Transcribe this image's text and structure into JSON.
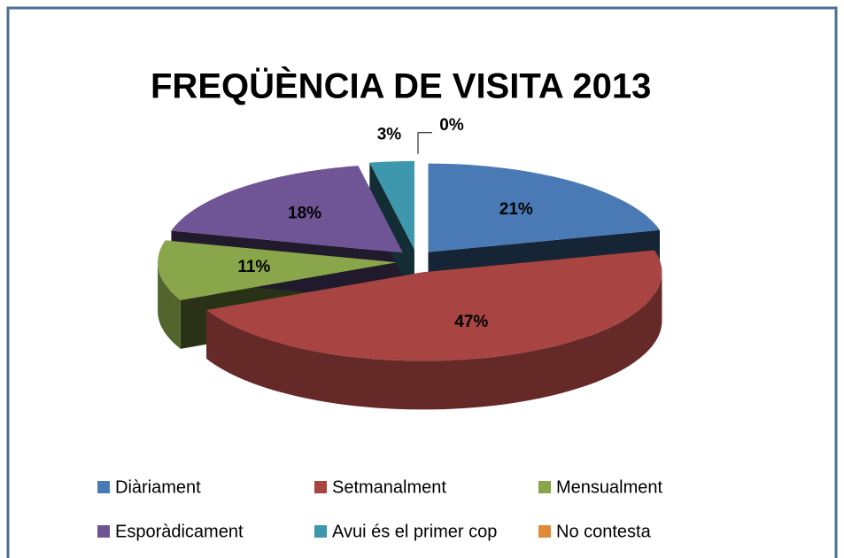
{
  "chart_data": {
    "type": "pie",
    "title": "FREQÜÈNCIA DE VISITA 2013",
    "categories": [
      "Diàriament",
      "Setmanalment",
      "Mensualment",
      "Esporàdicament",
      "Avui és el primer cop",
      "No contesta"
    ],
    "values": [
      21,
      47,
      11,
      18,
      3,
      0
    ],
    "value_labels": [
      "21%",
      "47%",
      "11%",
      "18%",
      "3%",
      "0%"
    ],
    "colors": [
      "#4a7ab5",
      "#a84442",
      "#8aa64a",
      "#6f5596",
      "#3d97ad",
      "#e08a3a"
    ],
    "legend": "bottom"
  }
}
